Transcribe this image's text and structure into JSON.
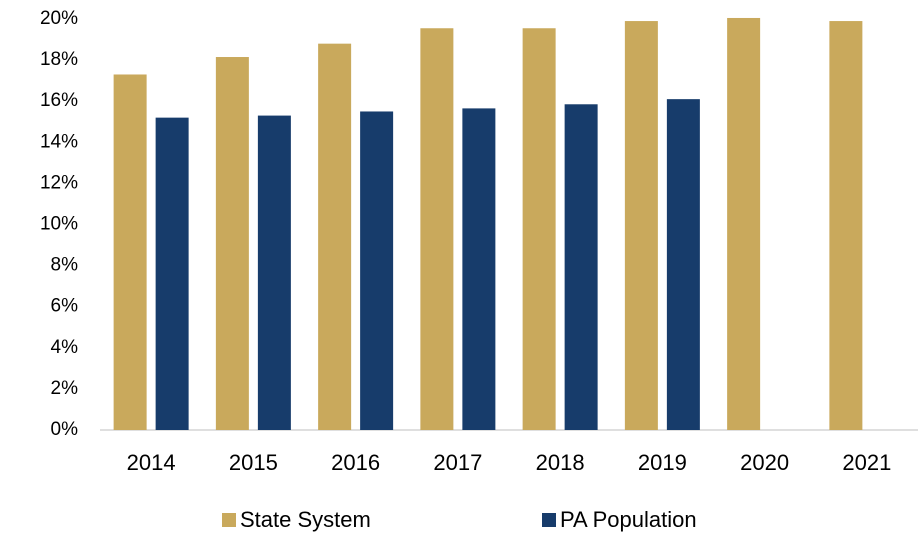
{
  "chart_data": {
    "type": "bar",
    "categories": [
      "2014",
      "2015",
      "2016",
      "2017",
      "2018",
      "2019",
      "2020",
      "2021"
    ],
    "series": [
      {
        "name": "State System",
        "color": "#c9a95c",
        "values": [
          17.3,
          18.15,
          18.8,
          19.55,
          19.55,
          19.9,
          20.05,
          19.9
        ]
      },
      {
        "name": "PA Population",
        "color": "#173c6b",
        "values": [
          15.2,
          15.3,
          15.5,
          15.65,
          15.85,
          16.1,
          null,
          null
        ]
      }
    ],
    "ylim": [
      0,
      20
    ],
    "yticks": [
      {
        "value": 0,
        "label": "0%"
      },
      {
        "value": 2,
        "label": "2%"
      },
      {
        "value": 4,
        "label": "4%"
      },
      {
        "value": 6,
        "label": "6%"
      },
      {
        "value": 8,
        "label": "8%"
      },
      {
        "value": 10,
        "label": "10%"
      },
      {
        "value": 12,
        "label": "12%"
      },
      {
        "value": 14,
        "label": "14%"
      },
      {
        "value": 16,
        "label": "16%"
      },
      {
        "value": 18,
        "label": "18%"
      },
      {
        "value": 20,
        "label": "20%"
      }
    ],
    "grid": false,
    "legend": "bottom"
  }
}
